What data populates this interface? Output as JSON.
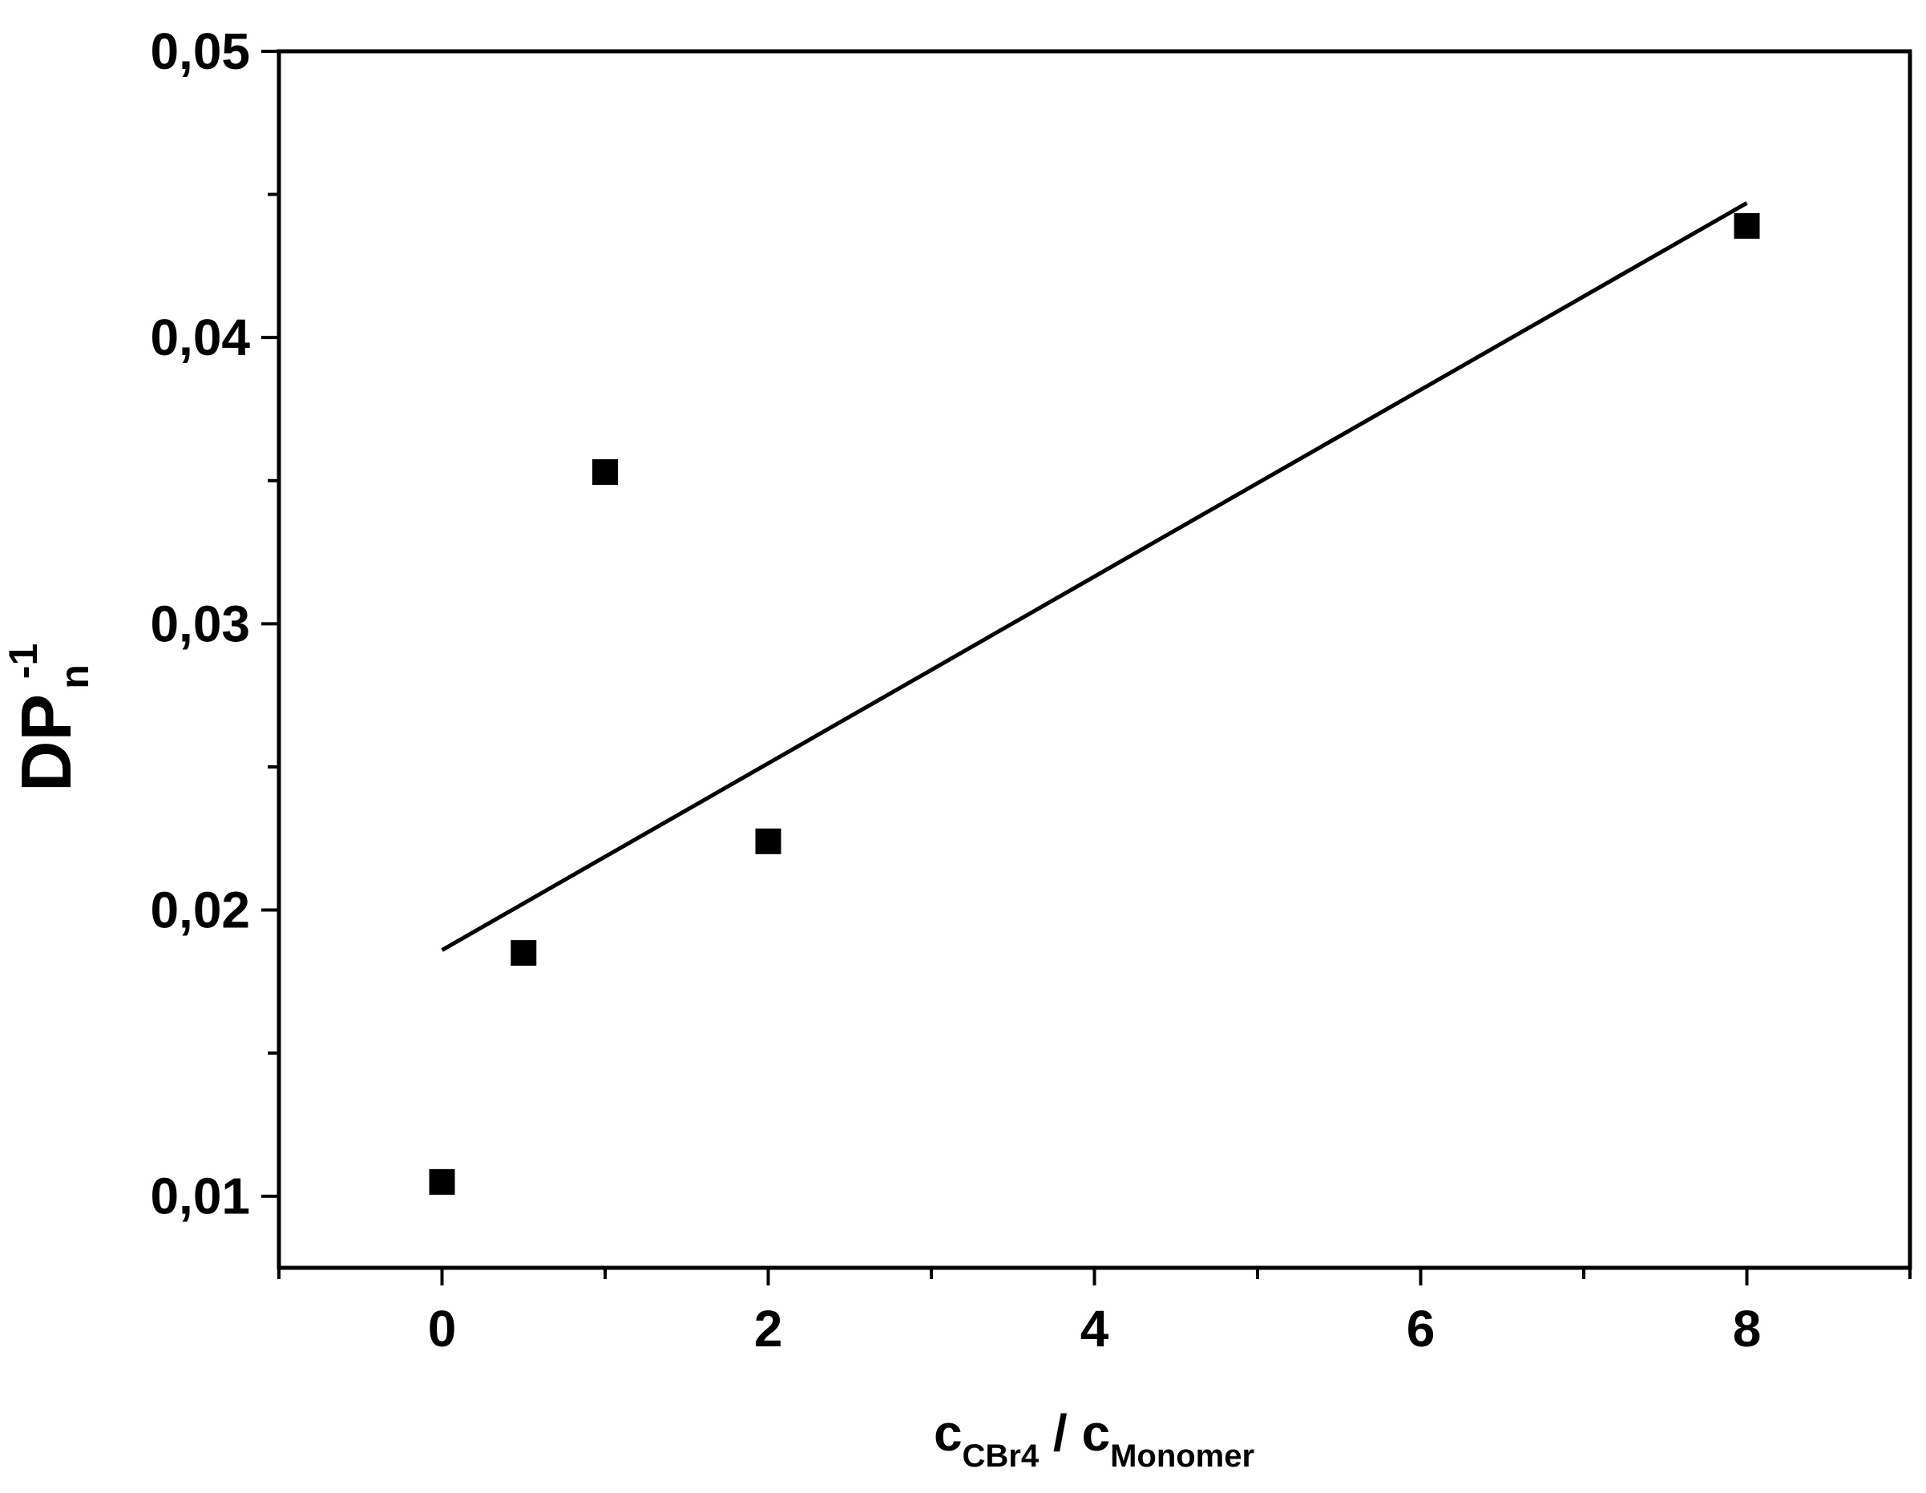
{
  "chart_data": {
    "type": "scatter",
    "x_axis": {
      "label_main": "c",
      "label_sub1": "CBr4",
      "label_sep": " / ",
      "label_main2": "c",
      "label_sub2": "Monomer",
      "range": [
        -1,
        9
      ],
      "major_ticks": [
        0,
        2,
        4,
        6,
        8
      ],
      "tick_labels": [
        "0",
        "2",
        "4",
        "6",
        "8"
      ],
      "minor_ticks": [
        -1,
        1,
        3,
        5,
        7,
        9
      ]
    },
    "y_axis": {
      "label_main": "DP",
      "label_sub": "n",
      "label_sup": "-1",
      "range": [
        0.0075,
        0.05
      ],
      "major_ticks": [
        0.01,
        0.02,
        0.03,
        0.04,
        0.05
      ],
      "tick_labels": [
        "0,01",
        "0,02",
        "0,03",
        "0,04",
        "0,05"
      ],
      "minor_ticks": [
        0.015,
        0.025,
        0.035,
        0.045
      ]
    },
    "series": [
      {
        "kind": "points",
        "marker": "square",
        "color": "#000000",
        "points": [
          {
            "x": 0,
            "y": 0.0105
          },
          {
            "x": 0.5,
            "y": 0.0185
          },
          {
            "x": 1,
            "y": 0.0353
          },
          {
            "x": 2,
            "y": 0.0224
          },
          {
            "x": 8,
            "y": 0.0439
          }
        ]
      },
      {
        "kind": "line",
        "color": "#000000",
        "points": [
          {
            "x": 0,
            "y": 0.0186
          },
          {
            "x": 8,
            "y": 0.0447
          }
        ]
      }
    ],
    "grid": false,
    "legend": "none"
  }
}
